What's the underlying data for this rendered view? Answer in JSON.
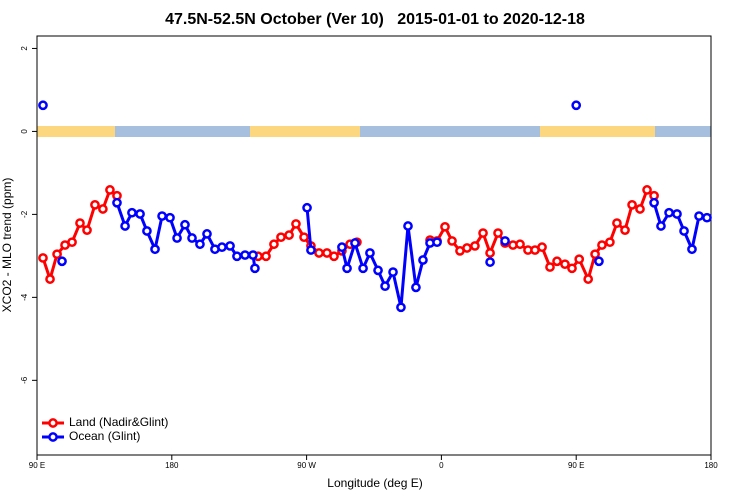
{
  "chart_data": {
    "type": "line",
    "title": "47.5N-52.5N October (Ver 10)   2015-01-01 to 2020-12-18",
    "x_label": "Longitude (deg E)",
    "y_label": "XCO2 - MLO trend (ppm)",
    "xlim": [
      90,
      540
    ],
    "xticks": [
      {
        "value": 90,
        "label": "90 E"
      },
      {
        "value": 180,
        "label": "180"
      },
      {
        "value": 270,
        "label": "90 W"
      },
      {
        "value": 360,
        "label": "0"
      },
      {
        "value": 450,
        "label": "90 E"
      },
      {
        "value": 540,
        "label": "180"
      }
    ],
    "ylim": [
      -7.8,
      2.3
    ],
    "yticks": [
      2,
      0,
      -2,
      -4,
      -6
    ],
    "legend": "bottom-left",
    "series": [
      {
        "name": "Land (Nadir&Glint)",
        "color": "#ff0000",
        "x": [
          94,
          98.7,
          103.4,
          108.7,
          113.4,
          118.7,
          123.4,
          128.7,
          134,
          138.7,
          143.4,
          null,
          237.6,
          242.9,
          248.2,
          252.9,
          258.3,
          262.9,
          268.3,
          272.9,
          278.3,
          283.6,
          288.3,
          293.6,
          299,
          303.6,
          null,
          352.4,
          357.1,
          362.4,
          367.1,
          372.4,
          377.1,
          382.4,
          387.8,
          392.5,
          397.8,
          402.5,
          407.8,
          412.5,
          417.8,
          422.5,
          427.2,
          432.5,
          437.2,
          442.5,
          447.2,
          452,
          458,
          462.6,
          467.2,
          472.5,
          477.2,
          482.6,
          487.3,
          492.6,
          497.3,
          502
        ],
        "values": [
          -3.05,
          -3.56,
          -2.96,
          -2.74,
          -2.67,
          -2.21,
          -2.38,
          -1.77,
          -1.87,
          -1.41,
          -1.55,
          null,
          -3.01,
          -3.01,
          -2.72,
          -2.55,
          -2.5,
          -2.23,
          -2.55,
          -2.76,
          -2.93,
          -2.93,
          -3.01,
          -2.88,
          -2.72,
          -2.67,
          null,
          -2.62,
          -2.64,
          -2.3,
          -2.64,
          -2.88,
          -2.81,
          -2.76,
          -2.45,
          -2.93,
          -2.45,
          -2.69,
          -2.74,
          -2.72,
          -2.86,
          -2.86,
          -2.79,
          -3.27,
          -3.13,
          -3.2,
          -3.3,
          -3.08,
          -3.56,
          -2.96,
          -2.74,
          -2.67,
          -2.21,
          -2.38,
          -1.77,
          -1.87,
          -1.41,
          -1.55
        ]
      },
      {
        "name": "Ocean (Glint)",
        "color": "#0000ff",
        "x": [
          94,
          null,
          106.7,
          null,
          143.4,
          148.8,
          153.4,
          158.8,
          163.4,
          168.8,
          173.5,
          178.8,
          183.5,
          188.8,
          193.5,
          198.8,
          203.5,
          208.8,
          213.5,
          218.9,
          223.5,
          228.9,
          234.2,
          235.5,
          null,
          270.3,
          272.9,
          null,
          293.6,
          297,
          302.3,
          307.7,
          312.3,
          317.7,
          322.4,
          327.7,
          333,
          337.7,
          343,
          347.7,
          352.4,
          357.1,
          null,
          392.5,
          null,
          402.5,
          null,
          450,
          null,
          465.2,
          null,
          502,
          506.6,
          512,
          517.3,
          522,
          527.3,
          532,
          537.3
        ],
        "values": [
          0.63,
          null,
          -3.13,
          null,
          -1.72,
          -2.28,
          -1.96,
          -1.99,
          -2.4,
          -2.84,
          -2.04,
          -2.08,
          -2.57,
          -2.25,
          -2.57,
          -2.72,
          -2.47,
          -2.84,
          -2.79,
          -2.76,
          -3.01,
          -2.98,
          -2.98,
          -3.3,
          null,
          -1.84,
          -2.86,
          null,
          -2.79,
          -3.3,
          -2.69,
          -3.3,
          -2.93,
          -3.35,
          -3.73,
          -3.39,
          -4.24,
          -2.28,
          -3.76,
          -3.1,
          -2.69,
          -2.67,
          null,
          -3.15,
          null,
          -2.64,
          null,
          0.63,
          null,
          -3.13,
          null,
          -1.72,
          -2.28,
          -1.96,
          -1.99,
          -2.4,
          -2.84,
          -2.04,
          -2.08
        ]
      }
    ]
  }
}
